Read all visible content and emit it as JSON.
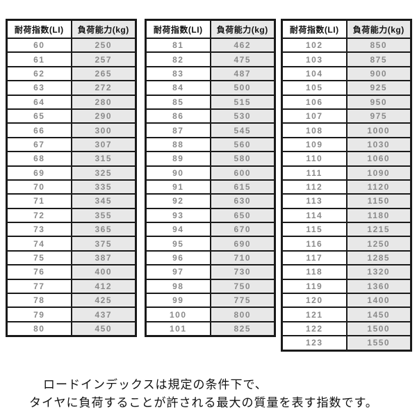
{
  "colors": {
    "background": "#ffffff",
    "table_border": "#1a1a1a",
    "kg_column_background": "#e8e8e8",
    "header_text": "#111111",
    "value_text": "#8a8a8a",
    "caption_text": "#111111"
  },
  "tables": [
    {
      "name": "load-index-table-60-80",
      "headers": [
        "耐荷指数(LI)",
        "負荷能力(kg)"
      ],
      "rows": [
        [
          60,
          250
        ],
        [
          61,
          257
        ],
        [
          62,
          265
        ],
        [
          63,
          272
        ],
        [
          64,
          280
        ],
        [
          65,
          290
        ],
        [
          66,
          300
        ],
        [
          67,
          307
        ],
        [
          68,
          315
        ],
        [
          69,
          325
        ],
        [
          70,
          335
        ],
        [
          71,
          345
        ],
        [
          72,
          355
        ],
        [
          73,
          365
        ],
        [
          74,
          375
        ],
        [
          75,
          387
        ],
        [
          76,
          400
        ],
        [
          77,
          412
        ],
        [
          78,
          425
        ],
        [
          79,
          437
        ],
        [
          80,
          450
        ]
      ]
    },
    {
      "name": "load-index-table-81-101",
      "headers": [
        "耐荷指数(LI)",
        "負荷能力(kg)"
      ],
      "rows": [
        [
          81,
          462
        ],
        [
          82,
          475
        ],
        [
          83,
          487
        ],
        [
          84,
          500
        ],
        [
          85,
          515
        ],
        [
          86,
          530
        ],
        [
          87,
          545
        ],
        [
          88,
          560
        ],
        [
          89,
          580
        ],
        [
          90,
          600
        ],
        [
          91,
          615
        ],
        [
          92,
          630
        ],
        [
          93,
          650
        ],
        [
          94,
          670
        ],
        [
          95,
          690
        ],
        [
          96,
          710
        ],
        [
          97,
          730
        ],
        [
          98,
          750
        ],
        [
          99,
          775
        ],
        [
          100,
          800
        ],
        [
          101,
          825
        ]
      ]
    },
    {
      "name": "load-index-table-102-123",
      "headers": [
        "耐荷指数(LI)",
        "負荷能力(kg)"
      ],
      "rows": [
        [
          102,
          850
        ],
        [
          103,
          875
        ],
        [
          104,
          900
        ],
        [
          105,
          925
        ],
        [
          106,
          950
        ],
        [
          107,
          975
        ],
        [
          108,
          1000
        ],
        [
          109,
          1030
        ],
        [
          110,
          1060
        ],
        [
          111,
          1090
        ],
        [
          112,
          1120
        ],
        [
          113,
          1150
        ],
        [
          114,
          1180
        ],
        [
          115,
          1215
        ],
        [
          116,
          1250
        ],
        [
          117,
          1285
        ],
        [
          118,
          1320
        ],
        [
          119,
          1360
        ],
        [
          120,
          1400
        ],
        [
          121,
          1450
        ],
        [
          122,
          1500
        ],
        [
          123,
          1550
        ]
      ]
    }
  ],
  "caption": {
    "line1": "ロードインデックスは規定の条件下で、",
    "line2": "タイヤに負荷することが許される最大の質量を表す指数です。"
  }
}
